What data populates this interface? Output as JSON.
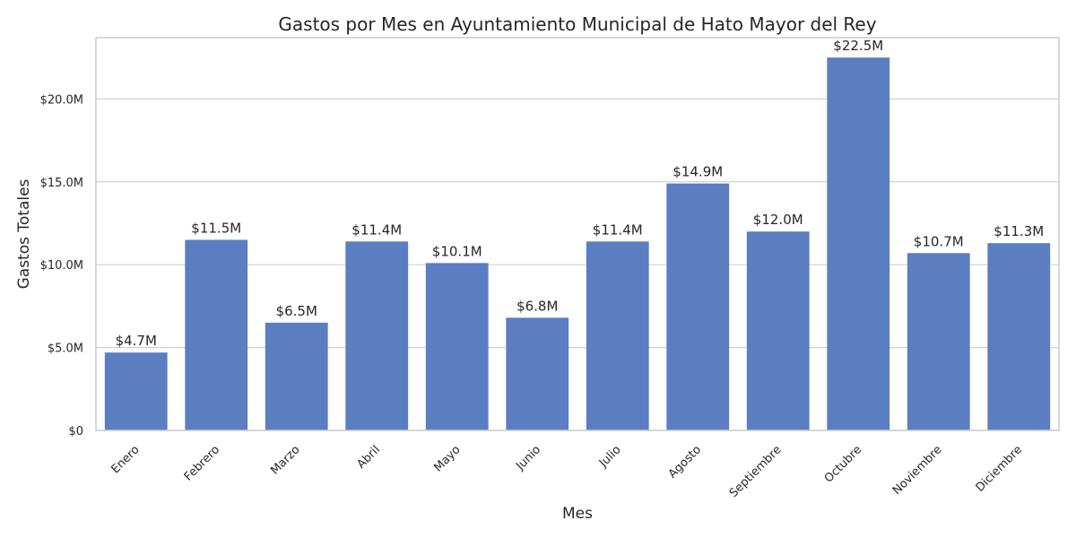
{
  "chart_data": {
    "type": "bar",
    "title": "Gastos por Mes en Ayuntamiento Municipal de Hato Mayor del Rey",
    "xlabel": "Mes",
    "ylabel": "Gastos Totales",
    "categories": [
      "Enero",
      "Febrero",
      "Marzo",
      "Abril",
      "Mayo",
      "Junio",
      "Julio",
      "Agosto",
      "Septiembre",
      "Octubre",
      "Noviembre",
      "Diciembre"
    ],
    "values": [
      4.7,
      11.5,
      6.5,
      11.4,
      10.1,
      6.8,
      11.4,
      14.9,
      12.0,
      22.5,
      10.7,
      11.3
    ],
    "value_labels": [
      "$4.7M",
      "$11.5M",
      "$6.5M",
      "$11.4M",
      "$10.1M",
      "$6.8M",
      "$11.4M",
      "$14.9M",
      "$12.0M",
      "$22.5M",
      "$10.7M",
      "$11.3M"
    ],
    "value_unit": "millions of dollars",
    "yticks": [
      0,
      5,
      10,
      15,
      20
    ],
    "ytick_labels": [
      "$0",
      "$5.0M",
      "$10.0M",
      "$15.0M",
      "$20.0M"
    ],
    "ylim": [
      0,
      23.7
    ],
    "grid": "horizontal",
    "legend": "none",
    "colors": {
      "bar": "#5b7ec2",
      "grid": "#d0d0d0",
      "frame": "#cccccc",
      "background": "#ffffff",
      "text": "#262626"
    }
  }
}
